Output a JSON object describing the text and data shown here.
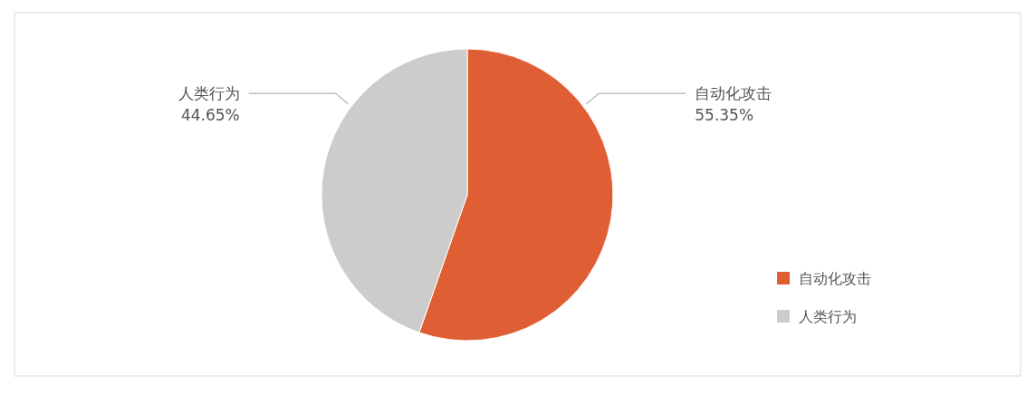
{
  "chart_data": {
    "type": "pie",
    "categories": [
      "自动化攻击",
      "人类行为"
    ],
    "values": [
      55.35,
      44.65
    ],
    "colors": [
      "#e05e33",
      "#cccccc"
    ],
    "value_labels": [
      "55.35%",
      "44.65%"
    ],
    "legend": "bottom right"
  }
}
